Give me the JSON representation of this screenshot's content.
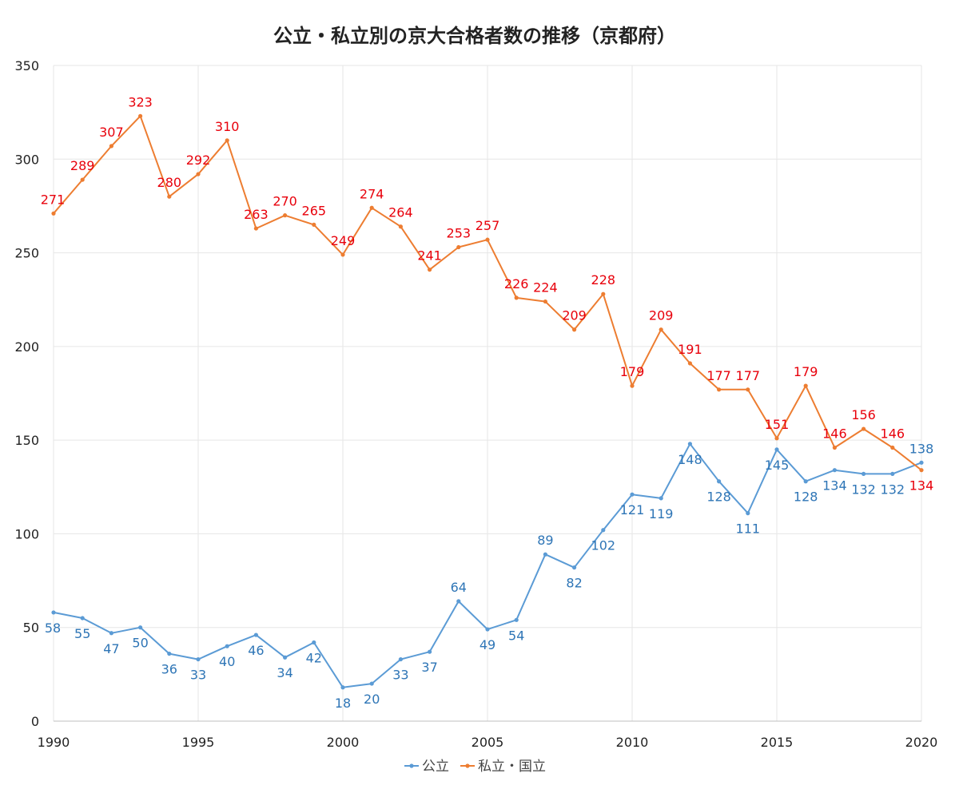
{
  "chart_data": {
    "type": "line",
    "title": "公立・私立別の京大合格者数の推移（京都府）",
    "xlabel": "",
    "ylabel": "",
    "xlim": [
      1990,
      2020
    ],
    "ylim": [
      0,
      350
    ],
    "x_ticks": [
      1990,
      1995,
      2000,
      2005,
      2010,
      2015,
      2020
    ],
    "y_ticks": [
      0,
      50,
      100,
      150,
      200,
      250,
      300,
      350
    ],
    "grid": true,
    "legend_position": "bottom",
    "x": [
      1990,
      1991,
      1992,
      1993,
      1994,
      1995,
      1996,
      1997,
      1998,
      1999,
      2000,
      2001,
      2002,
      2003,
      2004,
      2005,
      2006,
      2007,
      2008,
      2009,
      2010,
      2011,
      2012,
      2013,
      2014,
      2015,
      2016,
      2017,
      2018,
      2019,
      2020
    ],
    "series": [
      {
        "name": "公立",
        "color": "#5B9BD5",
        "label_color": "#2E75B6",
        "values": [
          58,
          55,
          47,
          50,
          36,
          33,
          40,
          46,
          34,
          42,
          18,
          20,
          33,
          37,
          64,
          49,
          54,
          89,
          82,
          102,
          121,
          119,
          148,
          128,
          111,
          145,
          128,
          134,
          132,
          132,
          138
        ]
      },
      {
        "name": "私立・国立",
        "color": "#ED7D31",
        "label_color": "#E8000B",
        "values": [
          271,
          289,
          307,
          323,
          280,
          292,
          310,
          263,
          270,
          265,
          249,
          274,
          264,
          241,
          253,
          257,
          226,
          224,
          209,
          228,
          179,
          209,
          191,
          177,
          177,
          151,
          179,
          146,
          156,
          146,
          134
        ]
      }
    ]
  }
}
